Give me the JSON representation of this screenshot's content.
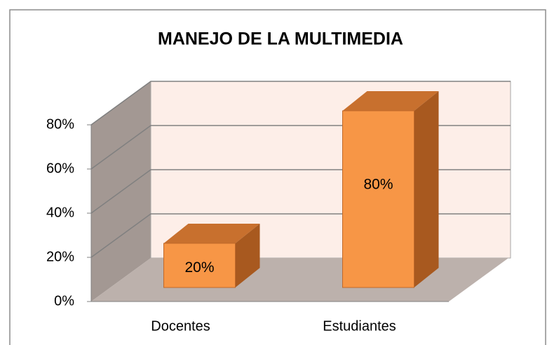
{
  "chart_data": {
    "type": "bar3d",
    "title": "MANEJO DE LA MULTIMEDIA",
    "categories": [
      "Docentes",
      "Estudiantes"
    ],
    "values": [
      20,
      80
    ],
    "value_labels": [
      "20%",
      "80%"
    ],
    "color": "#f79646",
    "ylim": [
      0,
      80
    ],
    "yticks": [
      {
        "value": 0,
        "label": "0%"
      },
      {
        "value": 20,
        "label": "20%"
      },
      {
        "value": 40,
        "label": "40%"
      },
      {
        "value": 60,
        "label": "60%"
      },
      {
        "value": 80,
        "label": "80%"
      }
    ],
    "grid": true
  }
}
